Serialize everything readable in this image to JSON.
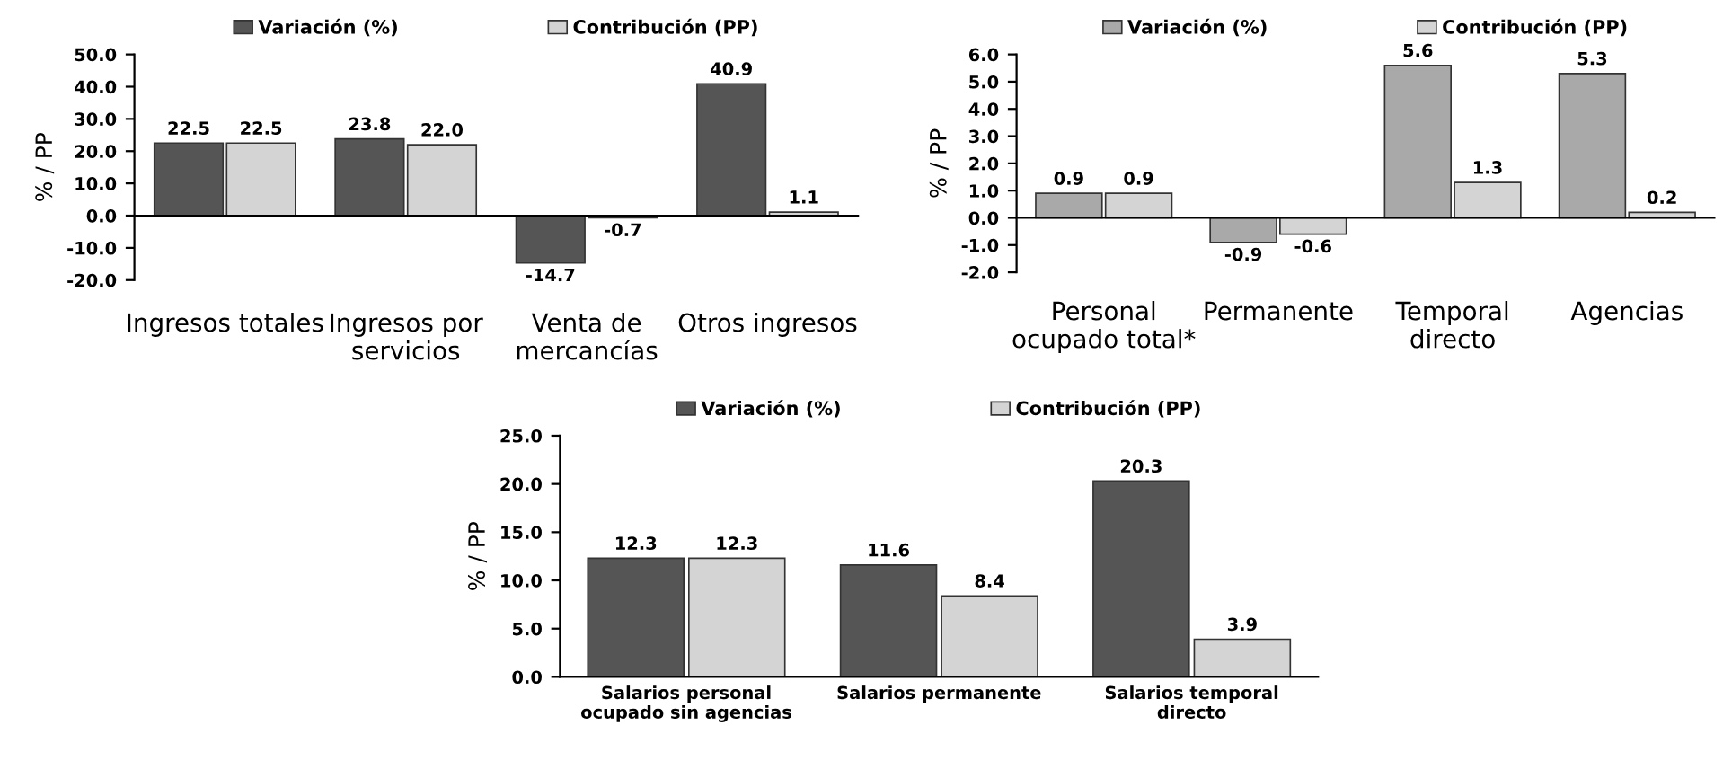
{
  "chart_data": [
    {
      "type": "bar",
      "categories": [
        "Ingresos totales",
        "Ingresos por\nservicios",
        "Venta de\nmercancías",
        "Otros ingresos"
      ],
      "ylabel": "% / PP",
      "ylim": [
        -20,
        50
      ],
      "yticks": [
        {
          "value": -20,
          "label": "-20.0"
        },
        {
          "value": -10,
          "label": "-10.0"
        },
        {
          "value": 0,
          "label": "0.0"
        },
        {
          "value": 10,
          "label": "10.0"
        },
        {
          "value": 20,
          "label": "20.0"
        },
        {
          "value": 30,
          "label": "30.0"
        },
        {
          "value": 40,
          "label": "40.0"
        },
        {
          "value": 50,
          "label": "50.0"
        }
      ],
      "legend": "top",
      "series": [
        {
          "name": "Variación (%)",
          "color": "#555555",
          "values": [
            22.5,
            23.8,
            -14.7,
            40.9
          ],
          "value_labels": [
            "22.5",
            "23.8",
            "-14.7",
            "40.9"
          ]
        },
        {
          "name": "Contribución (PP)",
          "color": "#d4d4d4",
          "values": [
            22.5,
            22.0,
            -0.7,
            1.1
          ],
          "value_labels": [
            "22.5",
            "22.0",
            "-0.7",
            "1.1"
          ]
        }
      ]
    },
    {
      "type": "bar",
      "categories": [
        "Personal\nocupado total*",
        "Permanente",
        "Temporal\ndirecto",
        "Agencias"
      ],
      "ylabel": "% / PP",
      "ylim": [
        -2,
        6
      ],
      "yticks": [
        {
          "value": -2,
          "label": "-2.0"
        },
        {
          "value": -1,
          "label": "-1.0"
        },
        {
          "value": 0,
          "label": "0.0"
        },
        {
          "value": 1,
          "label": "1.0"
        },
        {
          "value": 2,
          "label": "2.0"
        },
        {
          "value": 3,
          "label": "3.0"
        },
        {
          "value": 4,
          "label": "4.0"
        },
        {
          "value": 5,
          "label": "5.0"
        },
        {
          "value": 6,
          "label": "6.0"
        }
      ],
      "legend": "top",
      "series": [
        {
          "name": "Variación (%)",
          "color": "#a9a9a9",
          "values": [
            0.9,
            -0.9,
            5.6,
            5.3
          ],
          "value_labels": [
            "0.9",
            "-0.9",
            "5.6",
            "5.3"
          ]
        },
        {
          "name": "Contribución (PP)",
          "color": "#d4d4d4",
          "values": [
            0.9,
            -0.6,
            1.3,
            0.2
          ],
          "value_labels": [
            "0.9",
            "-0.6",
            "1.3",
            "0.2"
          ]
        }
      ]
    },
    {
      "type": "bar",
      "categories": [
        "Salarios personal\nocupado sin agencias",
        "Salarios permanente",
        "Salarios temporal\ndirecto"
      ],
      "ylabel": "% / PP",
      "ylim": [
        0,
        25
      ],
      "yticks": [
        {
          "value": 0,
          "label": "0.0"
        },
        {
          "value": 5,
          "label": "5.0"
        },
        {
          "value": 10,
          "label": "10.0"
        },
        {
          "value": 15,
          "label": "15.0"
        },
        {
          "value": 20,
          "label": "20.0"
        },
        {
          "value": 25,
          "label": "25.0"
        }
      ],
      "legend": "top",
      "series": [
        {
          "name": "Variación (%)",
          "color": "#555555",
          "values": [
            12.3,
            11.6,
            20.3
          ],
          "value_labels": [
            "12.3",
            "11.6",
            "20.3"
          ]
        },
        {
          "name": "Contribución (PP)",
          "color": "#d4d4d4",
          "values": [
            12.3,
            8.4,
            3.9
          ],
          "value_labels": [
            "12.3",
            "8.4",
            "3.9"
          ]
        }
      ]
    }
  ]
}
